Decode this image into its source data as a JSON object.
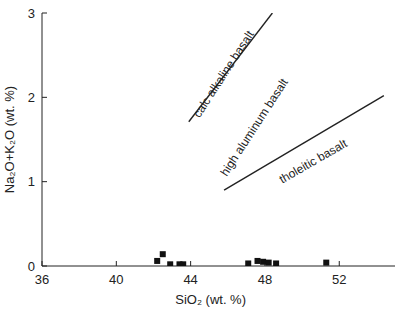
{
  "chart_data": {
    "type": "scatter",
    "x_label": "SiO₂ (wt. %)",
    "y_label": "Na₂O+K₂O (wt. %)",
    "xlim": [
      36,
      55
    ],
    "ylim": [
      0,
      3
    ],
    "xticks": [
      36,
      40,
      44,
      48,
      52
    ],
    "yticks": [
      0,
      1,
      2,
      3
    ],
    "grid": false,
    "series": [
      {
        "type": "scatter",
        "marker": "square",
        "color": "#111111",
        "x": [
          42.2,
          42.5,
          42.9,
          43.4,
          43.6,
          47.1,
          47.6,
          47.9,
          48.2,
          48.6,
          51.3
        ],
        "values": [
          0.06,
          0.14,
          0.02,
          0.02,
          0.02,
          0.03,
          0.06,
          0.05,
          0.04,
          0.03,
          0.04
        ]
      },
      {
        "type": "line",
        "line_style": "solid",
        "color": "#222222",
        "x": [
          43.9,
          48.4
        ],
        "values": [
          1.71,
          3.0
        ]
      },
      {
        "type": "line",
        "line_style": "solid",
        "color": "#222222",
        "x": [
          45.8,
          54.4
        ],
        "values": [
          0.9,
          2.02
        ]
      }
    ],
    "annotations": [
      {
        "text": "calc alkaline basalt",
        "x": 45.95,
        "y": 2.25
      },
      {
        "text": "high aluminum basalt",
        "x": 47.6,
        "y": 1.62
      },
      {
        "text": "tholeitic basalt",
        "x": 50.7,
        "y": 1.2
      }
    ]
  }
}
